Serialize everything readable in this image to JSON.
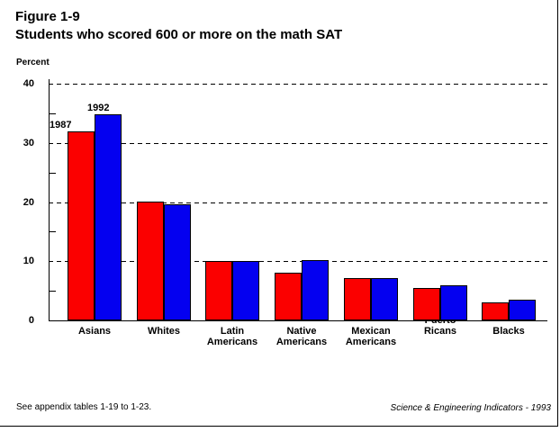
{
  "page": {
    "title": "Figure 1-9",
    "subtitle": "Students who scored 600 or more on the math SAT",
    "footer_left": "See appendix tables 1-19 to 1-23.",
    "footer_right": "Science & Engineering Indicators - 1993"
  },
  "chart_data": {
    "type": "bar",
    "title": "Students who scored 600 or more on the math SAT",
    "xlabel": "",
    "ylabel": "Percent",
    "ylim": [
      0,
      40
    ],
    "yticks_major": [
      0,
      10,
      20,
      30,
      40
    ],
    "yticks_minor": [
      5,
      15,
      25,
      35
    ],
    "grid": "horizontal dashed lines at 10, 20, 30, 40",
    "legend_position": "labels above first bar group",
    "categories": [
      {
        "label_lines": [
          "Asians"
        ]
      },
      {
        "label_lines": [
          "Whites"
        ]
      },
      {
        "label_lines": [
          "Latin",
          "Americans"
        ]
      },
      {
        "label_lines": [
          "Native",
          "Americans"
        ]
      },
      {
        "label_lines": [
          "Mexican",
          "Americans"
        ]
      },
      {
        "label_lines": [
          "Puerto",
          "Ricans"
        ],
        "first_line_clipped": true
      },
      {
        "label_lines": [
          "Blacks"
        ]
      }
    ],
    "series": [
      {
        "name": "1987",
        "color": "#fb0000",
        "values": [
          32,
          20,
          10,
          8.1,
          7.2,
          5.4,
          3.1
        ]
      },
      {
        "name": "1992",
        "color": "#0400f0",
        "values": [
          34.9,
          19.6,
          10,
          10.2,
          7.1,
          5.9,
          3.5
        ]
      }
    ]
  },
  "colors": {
    "bar_1987": "#fb0000",
    "bar_1992": "#0400f0",
    "axis": "#000000",
    "background": "#ffffff"
  }
}
